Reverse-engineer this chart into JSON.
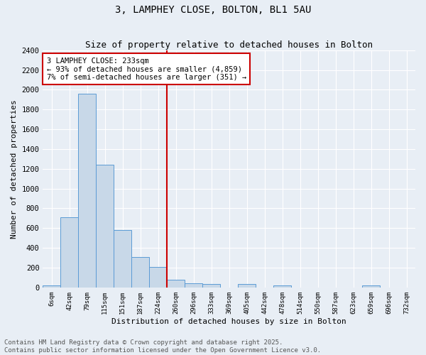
{
  "title": "3, LAMPHEY CLOSE, BOLTON, BL1 5AU",
  "subtitle": "Size of property relative to detached houses in Bolton",
  "xlabel": "Distribution of detached houses by size in Bolton",
  "ylabel": "Number of detached properties",
  "bin_labels": [
    "6sqm",
    "42sqm",
    "79sqm",
    "115sqm",
    "151sqm",
    "187sqm",
    "224sqm",
    "260sqm",
    "296sqm",
    "333sqm",
    "369sqm",
    "405sqm",
    "442sqm",
    "478sqm",
    "514sqm",
    "550sqm",
    "587sqm",
    "623sqm",
    "659sqm",
    "696sqm",
    "732sqm"
  ],
  "bar_values": [
    20,
    710,
    1960,
    1240,
    580,
    310,
    205,
    80,
    40,
    35,
    0,
    35,
    0,
    20,
    0,
    0,
    0,
    0,
    20,
    0,
    0
  ],
  "bar_color": "#c8d8e8",
  "bar_edge_color": "#5b9bd5",
  "vline_index": 6.5,
  "vline_color": "#cc0000",
  "annotation_line1": "3 LAMPHEY CLOSE: 233sqm",
  "annotation_line2": "← 93% of detached houses are smaller (4,859)",
  "annotation_line3": "7% of semi-detached houses are larger (351) →",
  "annotation_box_color": "#ffffff",
  "annotation_box_edge": "#cc0000",
  "ylim": [
    0,
    2400
  ],
  "yticks": [
    0,
    200,
    400,
    600,
    800,
    1000,
    1200,
    1400,
    1600,
    1800,
    2000,
    2200,
    2400
  ],
  "bg_color": "#e8eef5",
  "plot_bg_color": "#e8eef5",
  "footer_text": "Contains HM Land Registry data © Crown copyright and database right 2025.\nContains public sector information licensed under the Open Government Licence v3.0.",
  "title_fontsize": 10,
  "subtitle_fontsize": 9,
  "annotation_fontsize": 7.5,
  "footer_fontsize": 6.5,
  "ylabel_fontsize": 8,
  "xlabel_fontsize": 8
}
